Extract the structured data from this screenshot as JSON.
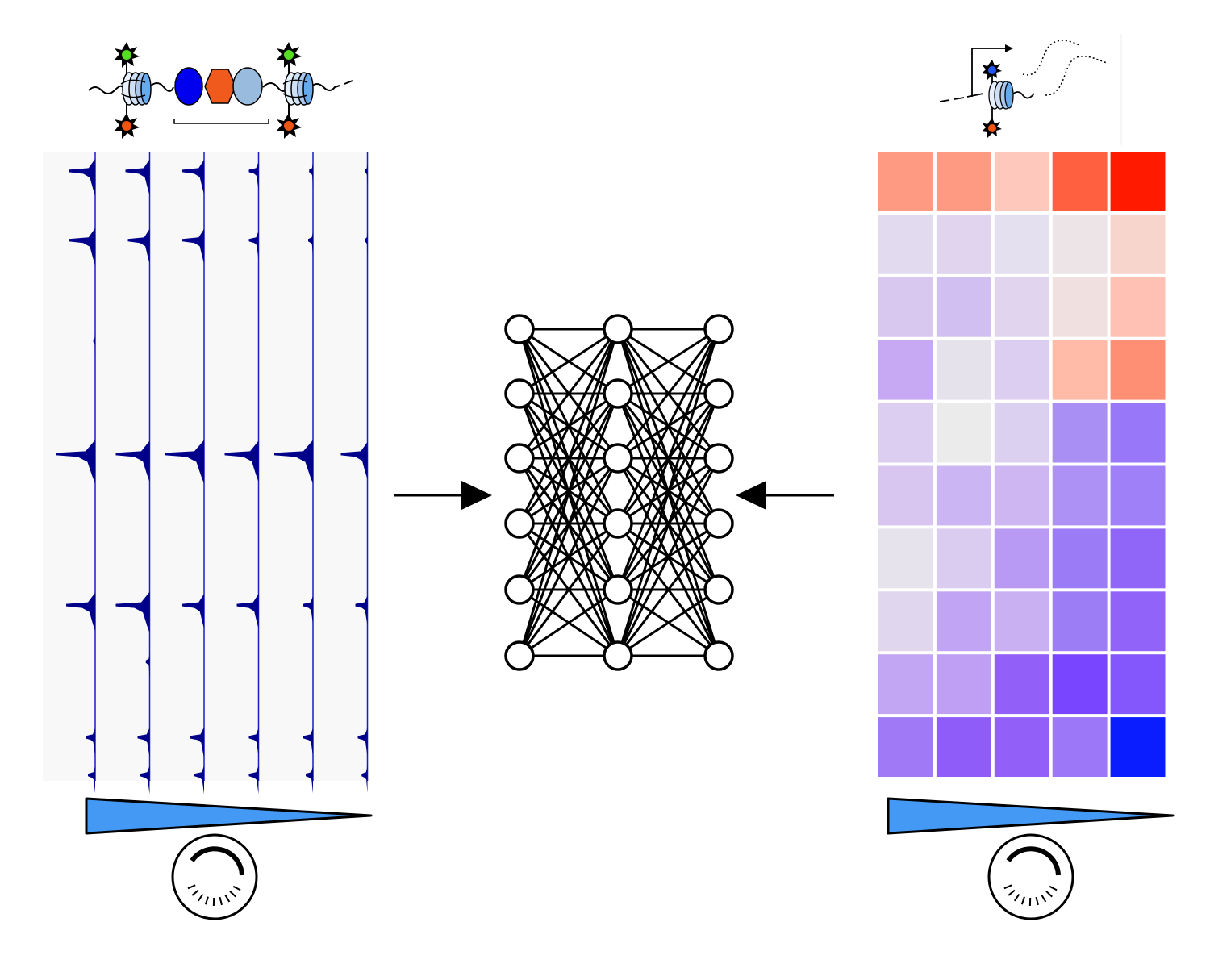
{
  "colors": {
    "track_fill": "#00008b",
    "track_line": "#1a1acc",
    "track_bg": "#f8f8f8",
    "wedge_fill": "#4499f5",
    "green_mark": "#55dd22",
    "orange_mark": "#ee5511",
    "blue_mark": "#2255ee",
    "protein_dark_blue": "#0000ee",
    "protein_orange": "#f05a1c",
    "protein_light_blue": "#99bbdd",
    "nucleosome_blue": "#66aaee"
  },
  "icons": {
    "left_top": "nucleosome-protein-complex-icon",
    "right_top": "nucleosome-transcription-icon",
    "dial": "dial-icon",
    "wedge": "gradient-wedge-icon",
    "network": "neural-network-icon"
  },
  "tracks": {
    "count": 6,
    "peaks": [
      [
        0.03,
        0.14,
        0.3,
        0.48,
        0.72,
        0.93,
        0.99
      ],
      [
        0.03,
        0.14,
        0.48,
        0.72,
        0.81,
        0.93,
        0.99
      ],
      [
        0.03,
        0.14,
        0.48,
        0.72,
        0.93,
        0.99
      ],
      [
        0.03,
        0.14,
        0.48,
        0.72,
        0.93,
        0.99
      ],
      [
        0.03,
        0.14,
        0.48,
        0.72,
        0.93,
        0.99
      ],
      [
        0.03,
        0.14,
        0.48,
        0.72,
        0.93,
        0.99
      ]
    ],
    "heights": [
      [
        0.55,
        0.55,
        0.04,
        0.8,
        0.6,
        0.2,
        0.15
      ],
      [
        0.5,
        0.45,
        0.7,
        0.7,
        0.08,
        0.25,
        0.2
      ],
      [
        0.45,
        0.45,
        0.8,
        0.45,
        0.3,
        0.2
      ],
      [
        0.2,
        0.2,
        0.7,
        0.45,
        0.2,
        0.2
      ],
      [
        0.08,
        0.1,
        0.8,
        0.2,
        0.2,
        0.15
      ],
      [
        0.05,
        0.05,
        0.55,
        0.25,
        0.2,
        0.12
      ]
    ]
  },
  "network": {
    "layers": [
      6,
      6,
      6
    ]
  },
  "heatmap": {
    "rows": 10,
    "cols": 5,
    "cells": [
      [
        "#ff9a82",
        "#ff9a82",
        "#fec8bc",
        "#ff6040",
        "#ff1a00"
      ],
      [
        "#e2daee",
        "#e0d4ef",
        "#e4e0ef",
        "#ede4e8",
        "#f8d5cc"
      ],
      [
        "#d8c8f0",
        "#d2bff1",
        "#e0d4ef",
        "#f0e0e0",
        "#fec1b3"
      ],
      [
        "#c7a9f3",
        "#e6e2ec",
        "#dbcef0",
        "#ffbba8",
        "#ff8f74"
      ],
      [
        "#dccef0",
        "#ecebec",
        "#dbd0f0",
        "#a98ef4",
        "#9878f8"
      ],
      [
        "#d8c6f0",
        "#cbb5f2",
        "#cdb6f2",
        "#ae91f5",
        "#a080f8"
      ],
      [
        "#e6e3ec",
        "#dacbf0",
        "#b899f4",
        "#9c7bf7",
        "#9066f9"
      ],
      [
        "#e0d6ee",
        "#c1a4f3",
        "#c9b0f2",
        "#9d7df6",
        "#9263f9"
      ],
      [
        "#c2a5f3",
        "#bf9ff3",
        "#925ff9",
        "#7a45fe",
        "#8457fd"
      ],
      [
        "#a07af6",
        "#8f5cfa",
        "#9260f9",
        "#9c77f7",
        "#0a1dff"
      ]
    ]
  }
}
